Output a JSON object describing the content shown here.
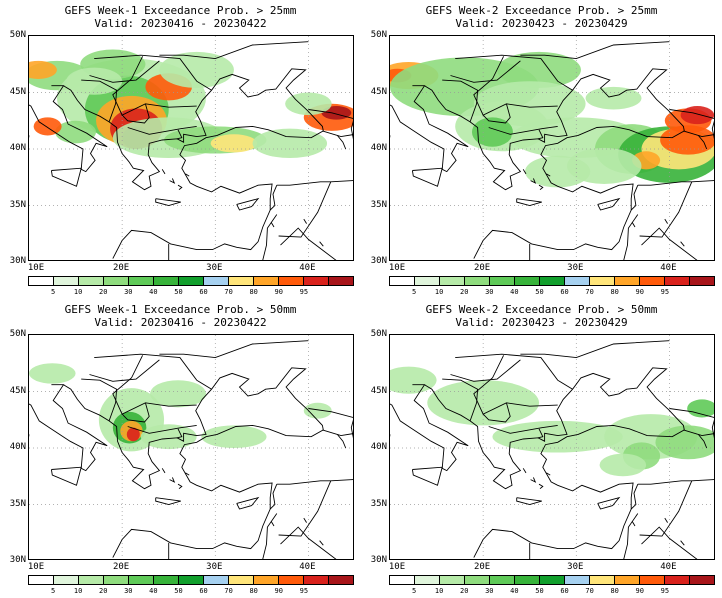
{
  "panels": [
    {
      "title_line1": "GEFS Week-1 Exceedance Prob. > 25mm",
      "title_line2": "Valid: 20230416 - 20230422"
    },
    {
      "title_line1": "GEFS Week-2 Exceedance Prob. > 25mm",
      "title_line2": "Valid: 20230423 - 20230429"
    },
    {
      "title_line1": "GEFS Week-1 Exceedance Prob. > 50mm",
      "title_line2": "Valid: 20230416 - 20230422"
    },
    {
      "title_line1": "GEFS Week-2 Exceedance Prob. > 50mm",
      "title_line2": "Valid: 20230423 - 20230429"
    }
  ],
  "lat_labels": [
    "50N",
    "45N",
    "40N",
    "35N",
    "30N"
  ],
  "lon_labels": [
    "10E",
    "20E",
    "30E",
    "40E"
  ],
  "colorbar": {
    "labels": [
      "5",
      "10",
      "20",
      "30",
      "40",
      "50",
      "60",
      "70",
      "80",
      "90",
      "95"
    ],
    "colors": [
      "#ffffff",
      "#e0f5dc",
      "#b6eaa8",
      "#8fdc7e",
      "#5fca58",
      "#37b33a",
      "#119f2c",
      "#a6d1f0",
      "#ffe57a",
      "#ffa528",
      "#ff5a0a",
      "#d9221c",
      "#a8151a"
    ]
  }
}
